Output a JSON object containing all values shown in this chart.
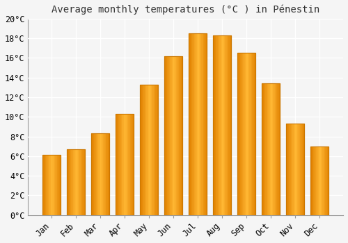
{
  "title": "Average monthly temperatures (°C ) in Pénestin",
  "months": [
    "Jan",
    "Feb",
    "Mar",
    "Apr",
    "May",
    "Jun",
    "Jul",
    "Aug",
    "Sep",
    "Oct",
    "Nov",
    "Dec"
  ],
  "temperatures": [
    6.1,
    6.7,
    8.3,
    10.3,
    13.3,
    16.2,
    18.5,
    18.3,
    16.5,
    13.4,
    9.3,
    7.0
  ],
  "bar_color_light": "#FFB733",
  "bar_color_dark": "#E08000",
  "ylim": [
    0,
    20
  ],
  "ytick_step": 2,
  "background_color": "#F5F5F5",
  "grid_color": "#FFFFFF",
  "title_fontsize": 10,
  "tick_fontsize": 8.5,
  "bar_width": 0.75
}
